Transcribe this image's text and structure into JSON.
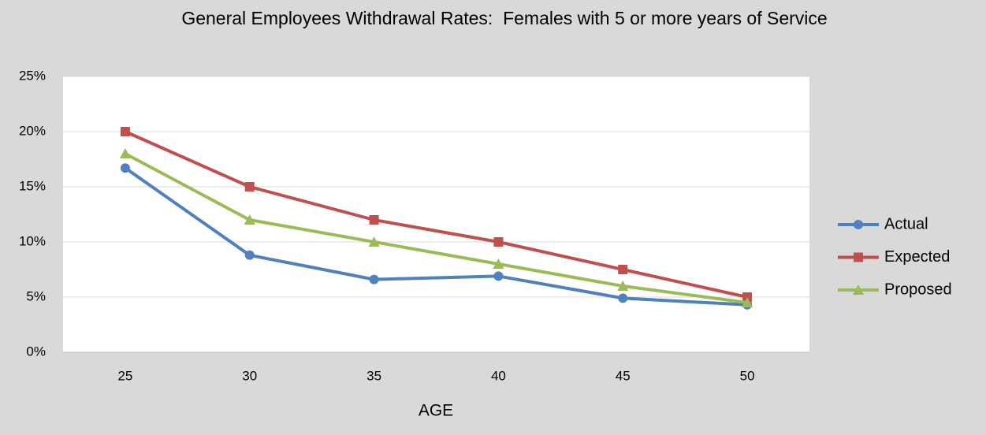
{
  "chart_data": {
    "type": "line",
    "title": "General Employees Withdrawal Rates:  Females with 5 or more years of Service",
    "x_label": "AGE",
    "categories": [
      "25",
      "30",
      "35",
      "40",
      "45",
      "50"
    ],
    "series": [
      {
        "name": "Actual",
        "color": "#4f81bd",
        "marker": "circle",
        "values": [
          16.7,
          8.8,
          6.6,
          6.9,
          4.9,
          4.3
        ]
      },
      {
        "name": "Expected",
        "color": "#c0504d",
        "marker": "square",
        "values": [
          20,
          15,
          12,
          10,
          7.5,
          5
        ]
      },
      {
        "name": "Proposed",
        "color": "#9bbb59",
        "marker": "triangle",
        "values": [
          18,
          12,
          10,
          8,
          6,
          4.5
        ]
      }
    ],
    "ylim": [
      0,
      25
    ],
    "yticks": [
      {
        "value": 0,
        "label": "0%"
      },
      {
        "value": 5,
        "label": "5%"
      },
      {
        "value": 10,
        "label": "10%"
      },
      {
        "value": 15,
        "label": "15%"
      },
      {
        "value": 20,
        "label": "20%"
      },
      {
        "value": 25,
        "label": "25%"
      }
    ],
    "grid": true,
    "legend": "right"
  }
}
